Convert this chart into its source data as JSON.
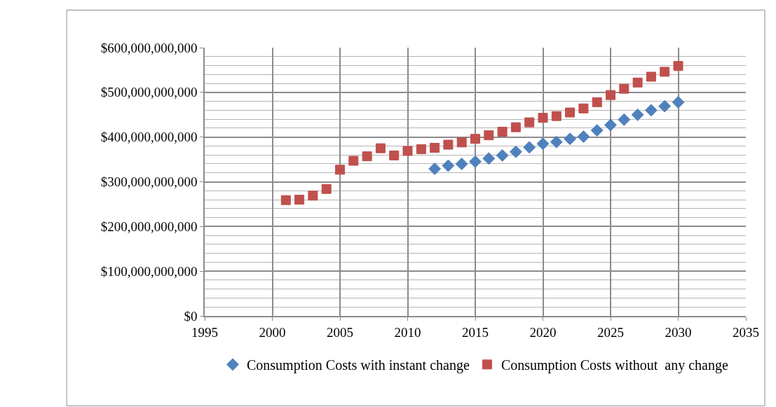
{
  "chart_data": {
    "type": "scatter",
    "x": [
      2001,
      2002,
      2003,
      2004,
      2005,
      2006,
      2007,
      2008,
      2009,
      2010,
      2011,
      2012,
      2013,
      2014,
      2015,
      2016,
      2017,
      2018,
      2019,
      2020,
      2021,
      2022,
      2023,
      2024,
      2025,
      2026,
      2027,
      2028,
      2029,
      2030
    ],
    "series": [
      {
        "name": "Consumption Costs with instant change",
        "color": "#4f81bd",
        "marker": "diamond",
        "values": [
          null,
          null,
          null,
          null,
          null,
          null,
          null,
          null,
          null,
          null,
          null,
          329000000000,
          336000000000,
          340000000000,
          345000000000,
          352000000000,
          359000000000,
          367000000000,
          377000000000,
          385000000000,
          389000000000,
          396000000000,
          401000000000,
          415000000000,
          427000000000,
          439000000000,
          450000000000,
          460000000000,
          469000000000,
          478000000000
        ]
      },
      {
        "name": "Consumption Costs without  any change",
        "color": "#c0504d",
        "marker": "square",
        "values": [
          259000000000,
          260000000000,
          269000000000,
          284000000000,
          327000000000,
          347000000000,
          357000000000,
          375000000000,
          359000000000,
          369000000000,
          373000000000,
          376000000000,
          383000000000,
          388000000000,
          396000000000,
          404000000000,
          412000000000,
          422000000000,
          433000000000,
          443000000000,
          447000000000,
          455000000000,
          464000000000,
          478000000000,
          494000000000,
          508000000000,
          522000000000,
          535000000000,
          546000000000,
          559000000000
        ]
      }
    ],
    "xlim": [
      1995,
      2035
    ],
    "xticks": [
      1995,
      2000,
      2005,
      2010,
      2015,
      2020,
      2025,
      2030,
      2035
    ],
    "ylim": [
      0,
      600000000000
    ],
    "yticks": [
      {
        "value": 0,
        "label": "$0"
      },
      {
        "value": 100000000000,
        "label": "$100,000,000,000"
      },
      {
        "value": 200000000000,
        "label": "$200,000,000,000"
      },
      {
        "value": 300000000000,
        "label": "$300,000,000,000"
      },
      {
        "value": 400000000000,
        "label": "$400,000,000,000"
      },
      {
        "value": 500000000000,
        "label": "$500,000,000,000"
      },
      {
        "value": 600000000000,
        "label": "$600,000,000,000"
      }
    ],
    "grid": true,
    "legend": "bottom"
  }
}
